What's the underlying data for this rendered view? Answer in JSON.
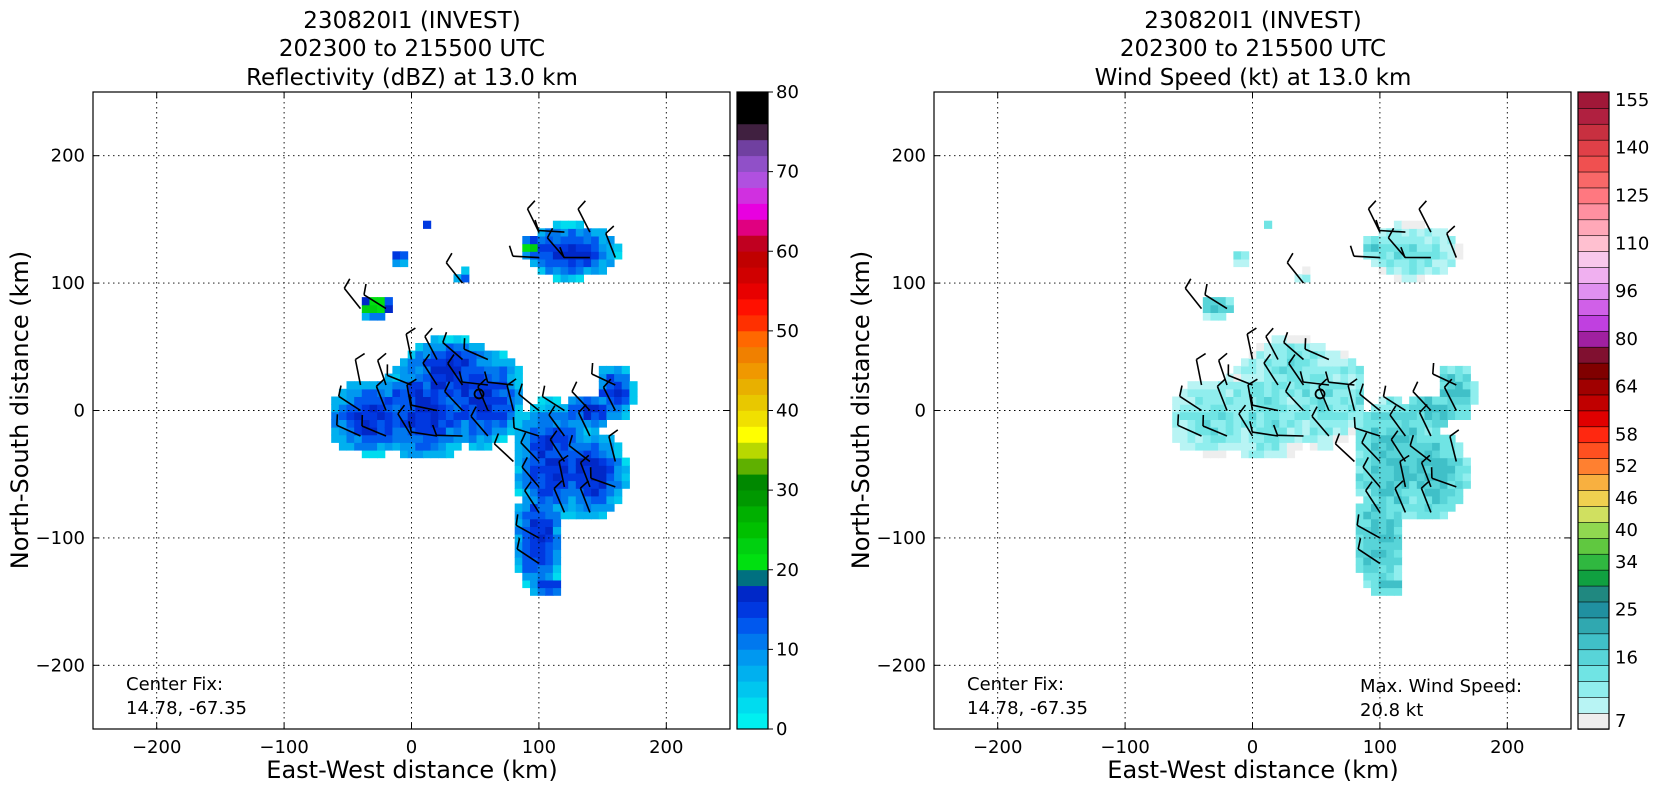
{
  "chart_data": [
    {
      "type": "heatmap",
      "title_lines": [
        "230820I1 (INVEST)",
        "202300 to 215500 UTC",
        "Reflectivity (dBZ) at 13.0 km"
      ],
      "xlabel": "East-West distance (km)",
      "ylabel": "North-South distance (km)",
      "xlim": [
        -250,
        250
      ],
      "ylim": [
        -250,
        250
      ],
      "xticks": [
        -200,
        -100,
        0,
        100,
        200
      ],
      "yticks": [
        -200,
        -100,
        0,
        100,
        200
      ],
      "grid": true,
      "colorbar": {
        "min": 0,
        "max": 80,
        "step": 2.5,
        "tick_values": [
          0,
          10,
          20,
          30,
          40,
          50,
          60,
          70,
          80
        ],
        "colors": [
          "#00f0f0",
          "#00dcef",
          "#00c6ef",
          "#00b0ef",
          "#0098f0",
          "#0078ee",
          "#0058ee",
          "#0038e0",
          "#0028c8",
          "#007080",
          "#00e010",
          "#00d010",
          "#00c000",
          "#00b000",
          "#009800",
          "#008800",
          "#5fb000",
          "#b8d800",
          "#ffff00",
          "#f0e000",
          "#e8c800",
          "#e8b000",
          "#f09800",
          "#f08000",
          "#ff6800",
          "#ff3000",
          "#ff1000",
          "#e80000",
          "#d00000",
          "#c00000",
          "#c00020",
          "#e00080",
          "#e800e0",
          "#d030e0",
          "#b050e0",
          "#9050c8",
          "#7040a0",
          "#402040",
          "#000000",
          "#000000"
        ]
      },
      "wind_data_rows": [
        "y=120: x=100..160 dBZ 6-12",
        "y=80: x=-30 dBZ 15-20",
        "y=30..-50: x=-35..110 dBZ 8-14",
        "y=0..-140: x=90..170 dBZ 6-12"
      ],
      "center_marker": {
        "x": 53,
        "y": 13
      },
      "annotations": {
        "center_fix_label": "Center Fix:",
        "center_fix_value": "14.78, -67.35"
      }
    },
    {
      "type": "heatmap",
      "title_lines": [
        "230820I1 (INVEST)",
        "202300 to 215500 UTC",
        "Wind Speed (kt) at 13.0 km"
      ],
      "xlabel": "East-West distance (km)",
      "ylabel": "North-South distance (km)",
      "xlim": [
        -250,
        250
      ],
      "ylim": [
        -250,
        250
      ],
      "xticks": [
        -200,
        -100,
        0,
        100,
        200
      ],
      "yticks": [
        -200,
        -100,
        0,
        100,
        200
      ],
      "grid": true,
      "colorbar": {
        "tick_labels_bottom_to_top": [
          "7",
          "16",
          "25",
          "34",
          "40",
          "46",
          "52",
          "58",
          "64",
          "80",
          "96",
          "110",
          "125",
          "140",
          "155"
        ],
        "colors": [
          "#eeeeee",
          "#b8f4f4",
          "#90eeee",
          "#70e4e4",
          "#58d4d8",
          "#40c0c8",
          "#30a8b0",
          "#2090a0",
          "#208880",
          "#10a040",
          "#30b840",
          "#60c840",
          "#90d850",
          "#d0e060",
          "#f0d050",
          "#f8b040",
          "#ff8030",
          "#ff5020",
          "#ff2810",
          "#e00000",
          "#c00000",
          "#a00000",
          "#800000",
          "#801030",
          "#a020a0",
          "#c040e0",
          "#d060e8",
          "#e090f0",
          "#f0b0f0",
          "#f8c8ec",
          "#ffc0d0",
          "#ffa8b8",
          "#ff90a0",
          "#ff7880",
          "#f86868",
          "#f05050",
          "#e04048",
          "#c83040",
          "#b02040",
          "#a01838"
        ]
      },
      "center_marker": {
        "x": 53,
        "y": 13
      },
      "annotations": {
        "center_fix_label": "Center Fix:",
        "center_fix_value": "14.78, -67.35",
        "max_wind_label": "Max. Wind Speed:",
        "max_wind_value": "20.8 kt"
      }
    }
  ]
}
